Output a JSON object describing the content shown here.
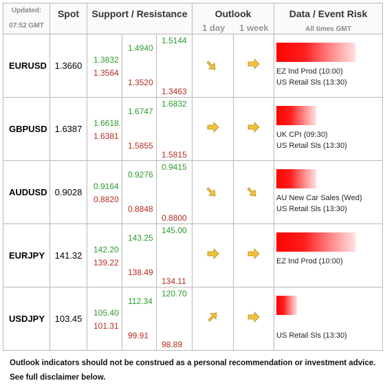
{
  "header": {
    "updated_label": "Updated:",
    "updated_time": "07:52 GMT",
    "spot": "Spot",
    "support_resistance": "Support / Resistance",
    "outlook": "Outlook",
    "outlook_1day": "1 day",
    "outlook_1week": "1 week",
    "data_event": "Data / Event Risk",
    "all_times": "All times GMT"
  },
  "rows": [
    {
      "pair": "EURUSD",
      "spot": "1.3660",
      "c1": {
        "g": "1.3832",
        "r": "1.3564"
      },
      "c2": {
        "g": "1.4940",
        "r": "1.3520"
      },
      "c3": {
        "g": "1.5144",
        "r": "1.3463"
      },
      "day": "down",
      "week": "right",
      "risk": 0.92,
      "events": [
        "EZ Ind Prod (10:00)",
        "US Retail Sls (13:30)"
      ]
    },
    {
      "pair": "GBPUSD",
      "spot": "1.6387",
      "c1": {
        "g": "1.6618.",
        "r": "1.6381"
      },
      "c2": {
        "g": "1.6747",
        "r": "1.5855"
      },
      "c3": {
        "g": "1.6832",
        "r": "1.5815"
      },
      "day": "right",
      "week": "right",
      "risk": 0.46,
      "events": [
        "UK CPI (09:30)",
        "US Retail Sls (13:30)"
      ]
    },
    {
      "pair": "AUDUSD",
      "spot": "0.9028",
      "c1": {
        "g": "0.9164",
        "r": "0.8820"
      },
      "c2": {
        "g": "0.9276",
        "r": "0.8848"
      },
      "c3": {
        "g": "0.9415",
        "r": "0.8800"
      },
      "day": "down",
      "week": "down",
      "risk": 0.46,
      "events": [
        "AU New Car Sales (Wed)",
        "US Retail Sls (13:30)"
      ]
    },
    {
      "pair": "EURJPY",
      "spot": "141.32",
      "c1": {
        "g": "142.20",
        "r": "139.22"
      },
      "c2": {
        "g": "143.25",
        "r": "138.49"
      },
      "c3": {
        "g": "145.00",
        "r": "134.11"
      },
      "day": "right",
      "week": "right",
      "risk": 0.92,
      "events": [
        "EZ Ind Prod (10:00)",
        ""
      ]
    },
    {
      "pair": "USDJPY",
      "spot": "103.45",
      "c1": {
        "g": "105.40",
        "r": "101.31"
      },
      "c2": {
        "g": "112.34",
        "r": "99.91"
      },
      "c3": {
        "g": "120.70",
        "r": "98.89"
      },
      "day": "up",
      "week": "right",
      "risk": 0.24,
      "events": [
        "",
        "US Retail Sls (13:30)"
      ]
    }
  ],
  "footer": {
    "line1": "Outlook indicators should not be construed as a personal recommendation or investment advice.",
    "line2": "See full disclaimer below."
  },
  "colors": {
    "support": "#2e9a2e",
    "resistance": "#b52a1e",
    "arrow": "#f3c23b",
    "risk": "#ff0000"
  }
}
